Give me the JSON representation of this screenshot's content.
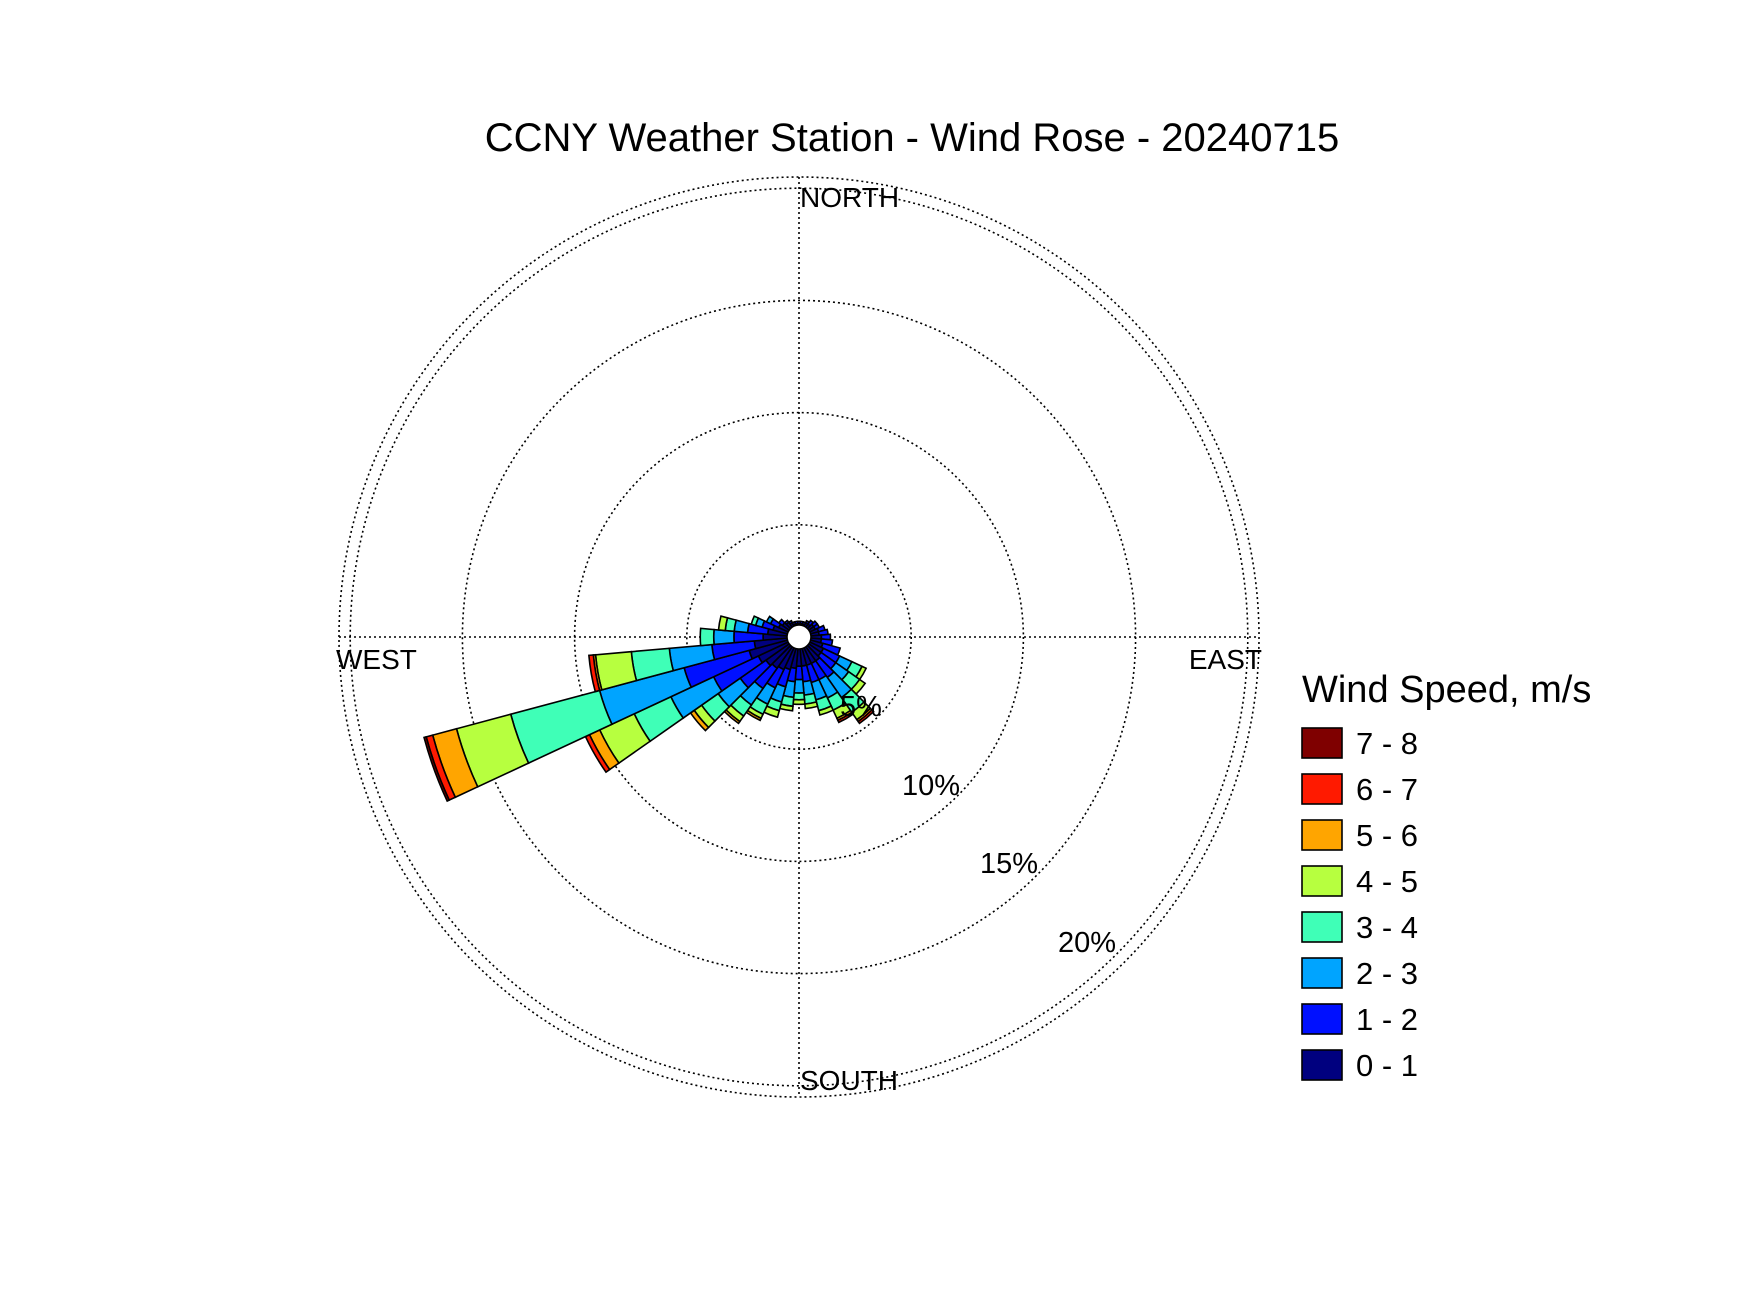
{
  "chart_data": {
    "type": "wind_rose",
    "title": "CCNY Weather Station - Wind Rose - 20240715",
    "directions": {
      "north": "NORTH",
      "east": "EAST",
      "south": "SOUTH",
      "west": "WEST"
    },
    "ring_labels": [
      "5%",
      "10%",
      "15%",
      "20%"
    ],
    "ring_values": [
      5,
      10,
      15,
      20
    ],
    "rmax": 20.5,
    "sector_width_deg": 10,
    "legend_title": "Wind Speed, m/s",
    "speed_bins": [
      {
        "label": "0 - 1",
        "color": "#00007f"
      },
      {
        "label": "1 - 2",
        "color": "#0010ff"
      },
      {
        "label": "2 - 3",
        "color": "#00a4ff"
      },
      {
        "label": "3 - 4",
        "color": "#3fffb7"
      },
      {
        "label": "4 - 5",
        "color": "#b7ff3f"
      },
      {
        "label": "5 - 6",
        "color": "#ffa500"
      },
      {
        "label": "6 - 7",
        "color": "#ff1a00"
      },
      {
        "label": "7 - 8",
        "color": "#7f0000"
      }
    ],
    "sectors": [
      {
        "direction_deg": 0,
        "cumulative_pct": [
          0.6,
          0.7
        ]
      },
      {
        "direction_deg": 10,
        "cumulative_pct": [
          0.6,
          0.7
        ]
      },
      {
        "direction_deg": 20,
        "cumulative_pct": [
          0.6,
          0.7
        ]
      },
      {
        "direction_deg": 30,
        "cumulative_pct": [
          0.7,
          0.8
        ]
      },
      {
        "direction_deg": 40,
        "cumulative_pct": [
          0.7,
          0.9
        ]
      },
      {
        "direction_deg": 50,
        "cumulative_pct": [
          0.8,
          1.0
        ]
      },
      {
        "direction_deg": 60,
        "cumulative_pct": [
          0.8,
          1.0
        ]
      },
      {
        "direction_deg": 70,
        "cumulative_pct": [
          0.9,
          1.2
        ]
      },
      {
        "direction_deg": 80,
        "cumulative_pct": [
          0.9,
          1.3
        ]
      },
      {
        "direction_deg": 90,
        "cumulative_pct": [
          1.0,
          1.4
        ]
      },
      {
        "direction_deg": 100,
        "cumulative_pct": [
          1.0,
          1.5
        ]
      },
      {
        "direction_deg": 110,
        "cumulative_pct": [
          1.1,
          1.9
        ]
      },
      {
        "direction_deg": 120,
        "cumulative_pct": [
          1.2,
          2.0,
          2.6,
          3.1,
          3.3
        ]
      },
      {
        "direction_deg": 130,
        "cumulative_pct": [
          1.2,
          2.0,
          2.7,
          3.3,
          3.6
        ]
      },
      {
        "direction_deg": 140,
        "cumulative_pct": [
          1.3,
          2.2,
          3.3,
          4.1,
          4.5,
          4.6,
          4.7
        ]
      },
      {
        "direction_deg": 150,
        "cumulative_pct": [
          1.3,
          2.1,
          3.0,
          3.6,
          4.0,
          4.1,
          4.2
        ]
      },
      {
        "direction_deg": 160,
        "cumulative_pct": [
          1.3,
          2.1,
          2.9,
          3.4,
          3.6
        ]
      },
      {
        "direction_deg": 170,
        "cumulative_pct": [
          1.3,
          2.0,
          2.6,
          3.0,
          3.2
        ]
      },
      {
        "direction_deg": 180,
        "cumulative_pct": [
          1.3,
          1.9,
          2.5,
          2.8,
          3.0
        ]
      },
      {
        "direction_deg": 190,
        "cumulative_pct": [
          1.4,
          2.0,
          2.7,
          3.1,
          3.3
        ]
      },
      {
        "direction_deg": 200,
        "cumulative_pct": [
          1.5,
          2.3,
          3.0,
          3.4,
          3.7
        ]
      },
      {
        "direction_deg": 210,
        "cumulative_pct": [
          1.6,
          2.5,
          3.3,
          3.8,
          4.0,
          4.1
        ]
      },
      {
        "direction_deg": 220,
        "cumulative_pct": [
          1.7,
          2.8,
          3.7,
          4.3,
          4.6,
          4.7
        ]
      },
      {
        "direction_deg": 230,
        "cumulative_pct": [
          1.8,
          3.2,
          4.4,
          5.3,
          5.7,
          5.9
        ]
      },
      {
        "direction_deg": 240,
        "cumulative_pct": [
          2.0,
          4.2,
          6.3,
          8.1,
          9.8,
          10.3,
          10.5
        ]
      },
      {
        "direction_deg": 250,
        "cumulative_pct": [
          2.3,
          5.3,
          9.2,
          13.3,
          15.8,
          16.9,
          17.2,
          17.3
        ]
      },
      {
        "direction_deg": 260,
        "cumulative_pct": [
          2.0,
          3.9,
          5.8,
          7.5,
          9.1,
          9.2,
          9.4
        ]
      },
      {
        "direction_deg": 270,
        "cumulative_pct": [
          1.6,
          2.9,
          3.8,
          4.4
        ]
      },
      {
        "direction_deg": 280,
        "cumulative_pct": [
          1.4,
          2.3,
          2.9,
          3.3,
          3.6
        ]
      },
      {
        "direction_deg": 290,
        "cumulative_pct": [
          1.2,
          1.7,
          2.0,
          2.2
        ]
      },
      {
        "direction_deg": 300,
        "cumulative_pct": [
          1.0,
          1.4,
          1.6
        ]
      },
      {
        "direction_deg": 310,
        "cumulative_pct": [
          0.9,
          1.1
        ]
      },
      {
        "direction_deg": 320,
        "cumulative_pct": [
          0.8,
          0.9
        ]
      },
      {
        "direction_deg": 330,
        "cumulative_pct": [
          0.7,
          0.8
        ]
      },
      {
        "direction_deg": 340,
        "cumulative_pct": [
          0.6,
          0.7
        ]
      },
      {
        "direction_deg": 350,
        "cumulative_pct": [
          0.6,
          0.7
        ]
      }
    ]
  }
}
